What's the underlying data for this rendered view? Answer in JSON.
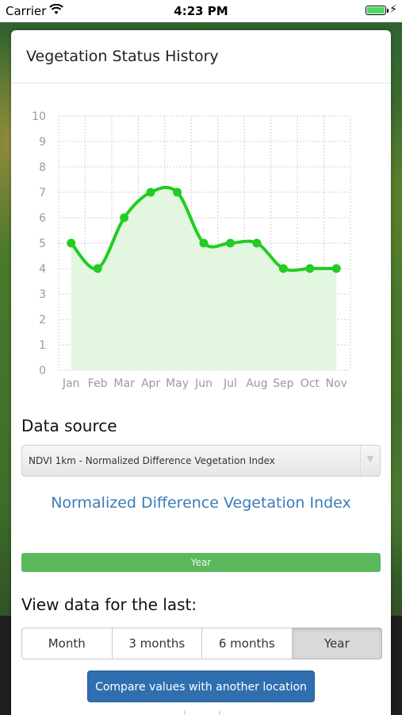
{
  "status_bar": {
    "carrier": "Carrier",
    "time": "4:23 PM"
  },
  "card": {
    "title": "Vegetation Status History"
  },
  "chart_data": {
    "type": "area",
    "title": "",
    "xlabel": "",
    "ylabel": "",
    "categories": [
      "Jan",
      "Feb",
      "Mar",
      "Apr",
      "May",
      "Jun",
      "Jul",
      "Aug",
      "Sep",
      "Oct",
      "Nov"
    ],
    "series": [
      {
        "values": [
          5,
          4,
          6,
          7,
          7,
          5,
          5,
          5,
          4,
          4,
          4
        ]
      }
    ],
    "ylim": [
      0,
      10
    ],
    "yticks": [
      "0",
      "1",
      "2",
      "3",
      "4",
      "5",
      "6",
      "7",
      "8",
      "9",
      "10"
    ],
    "grid": true,
    "line_color": "#22cc22",
    "fill_color": "#e3f7e0"
  },
  "data_source": {
    "label": "Data source",
    "selected": "NDVI 1km - Normalized Difference Vegetation Index",
    "index_title": "Normalized Difference Vegetation Index"
  },
  "period_bar": {
    "label": "Year"
  },
  "view": {
    "label": "View data for the last:",
    "options": [
      "Month",
      "3 months",
      "6 months",
      "Year"
    ],
    "selected": "Year"
  },
  "compare_button": {
    "label": "Compare values with another location"
  },
  "colors": {
    "accent_blue": "#2f6fb0",
    "green_bar": "#5cb85c",
    "title_blue": "#3a7cb7"
  }
}
